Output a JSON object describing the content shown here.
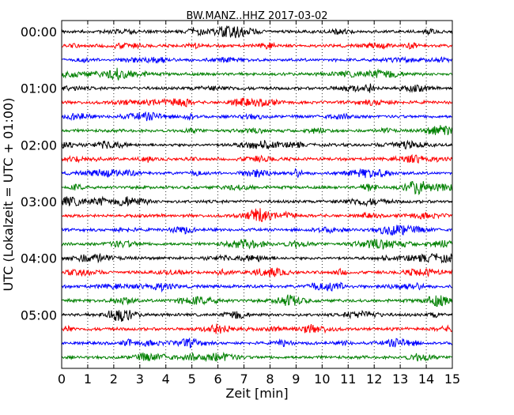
{
  "chart_data": {
    "type": "line",
    "title": "BW.MANZ..HHZ 2017-03-02",
    "xlabel": "Zeit  [min]",
    "ylabel": "UTC (Lokalzeit = UTC + 01:00)",
    "xlim": [
      0,
      15
    ],
    "x_ticks": [
      "0",
      "1",
      "2",
      "3",
      "4",
      "5",
      "6",
      "7",
      "8",
      "9",
      "10",
      "11",
      "12",
      "13",
      "14",
      "15"
    ],
    "y_ticks": [
      "00:00",
      "01:00",
      "02:00",
      "03:00",
      "04:00",
      "05:00"
    ],
    "ylim_hours": [
      0,
      6
    ],
    "grid": "vertical dotted",
    "trace_interval_minutes": 15,
    "trace_count": 24,
    "trace_colors": [
      "#000000",
      "#ff0000",
      "#0000ff",
      "#008000"
    ]
  }
}
